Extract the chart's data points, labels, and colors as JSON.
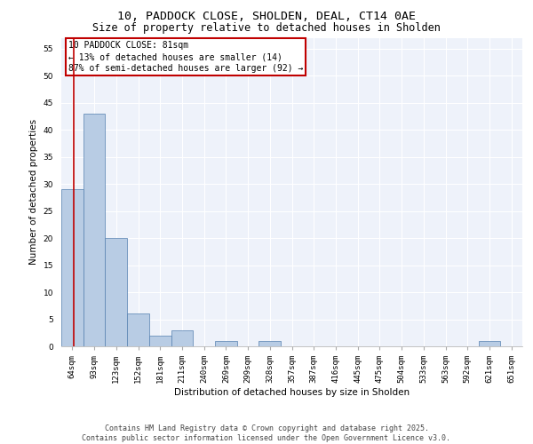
{
  "title": "10, PADDOCK CLOSE, SHOLDEN, DEAL, CT14 0AE",
  "subtitle": "Size of property relative to detached houses in Sholden",
  "xlabel": "Distribution of detached houses by size in Sholden",
  "ylabel": "Number of detached properties",
  "categories": [
    "64sqm",
    "93sqm",
    "123sqm",
    "152sqm",
    "181sqm",
    "211sqm",
    "240sqm",
    "269sqm",
    "299sqm",
    "328sqm",
    "357sqm",
    "387sqm",
    "416sqm",
    "445sqm",
    "475sqm",
    "504sqm",
    "533sqm",
    "563sqm",
    "592sqm",
    "621sqm",
    "651sqm"
  ],
  "values": [
    29,
    43,
    20,
    6,
    2,
    3,
    0,
    1,
    0,
    1,
    0,
    0,
    0,
    0,
    0,
    0,
    0,
    0,
    0,
    1,
    0
  ],
  "bar_color": "#b8cce4",
  "bar_edge_color": "#5580b0",
  "vline_color": "#c00000",
  "annotation_lines": [
    "10 PADDOCK CLOSE: 81sqm",
    "← 13% of detached houses are smaller (14)",
    "87% of semi-detached houses are larger (92) →"
  ],
  "annotation_box_color": "#c00000",
  "ylim": [
    0,
    57
  ],
  "yticks": [
    0,
    5,
    10,
    15,
    20,
    25,
    30,
    35,
    40,
    45,
    50,
    55
  ],
  "background_color": "#eef2fa",
  "grid_color": "#ffffff",
  "footer": "Contains HM Land Registry data © Crown copyright and database right 2025.\nContains public sector information licensed under the Open Government Licence v3.0.",
  "title_fontsize": 9.5,
  "subtitle_fontsize": 8.5,
  "label_fontsize": 7.5,
  "tick_fontsize": 6.5,
  "annotation_fontsize": 7,
  "footer_fontsize": 6
}
